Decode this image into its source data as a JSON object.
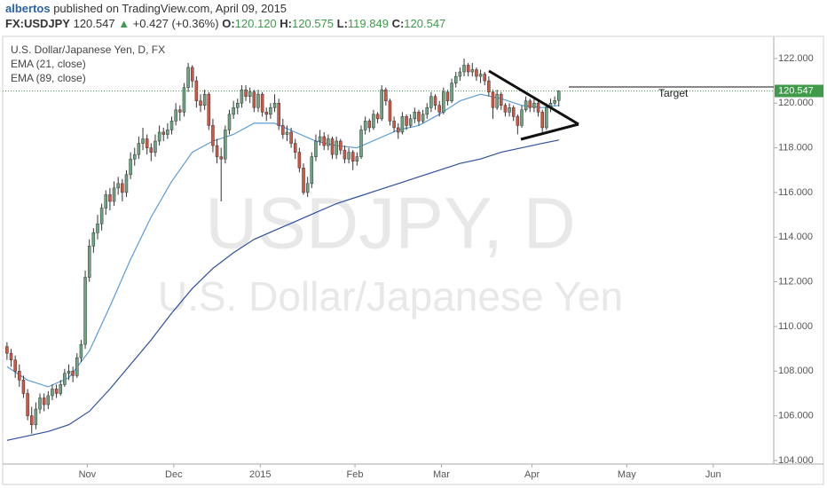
{
  "header": {
    "author": "albertos",
    "published": "published on TradingView.com, April 09, 2015",
    "symbol": "FX:USDJPY",
    "last": "120.547",
    "arrow": "▲",
    "change": "+0.427 (+0.36%)",
    "ohlc": [
      {
        "label": "O:",
        "value": "120.120"
      },
      {
        "label": "H:",
        "value": "120.575"
      },
      {
        "label": "L:",
        "value": "119.849"
      },
      {
        "label": "C:",
        "value": "120.547"
      }
    ]
  },
  "chart_data": {
    "type": "candlestick",
    "title": "U.S. Dollar/Japanese Yen, D, FX",
    "watermark": "USDJPY, D",
    "watermark_subtitle": "U.S. Dollar/Japanese Yen",
    "annotation": "Target",
    "up_color": "#6ba583",
    "down_color": "#d75442",
    "wick_color": "#333333",
    "xlim": [
      -1.7,
      186.2
    ],
    "ylim": [
      103.84,
      122.99
    ],
    "xticks": [
      {
        "value": 19.5,
        "label": "Nov"
      },
      {
        "value": 40.5,
        "label": "Dec"
      },
      {
        "value": 61.5,
        "label": "2015"
      },
      {
        "value": 84.5,
        "label": "Feb"
      },
      {
        "value": 105.5,
        "label": "Mar"
      },
      {
        "value": 127.5,
        "label": "Apr"
      },
      {
        "value": 150.5,
        "label": "May"
      },
      {
        "value": 171.5,
        "label": "Jun"
      }
    ],
    "yticks": [
      {
        "value": 104,
        "label": "104.000"
      },
      {
        "value": 106,
        "label": "106.000"
      },
      {
        "value": 108,
        "label": "108.000"
      },
      {
        "value": 110,
        "label": "110.000"
      },
      {
        "value": 112,
        "label": "112.000"
      },
      {
        "value": 114,
        "label": "114.000"
      },
      {
        "value": 116,
        "label": "116.000"
      },
      {
        "value": 118,
        "label": "118.000"
      },
      {
        "value": 120,
        "label": "120.000"
      },
      {
        "value": 122,
        "label": "122.000"
      }
    ],
    "grid": false,
    "last_price": {
      "value": 120.547,
      "label": "120.547"
    },
    "last_price_color": "#3f9a4a",
    "candles": [
      [
        109.1,
        109.3,
        108.5,
        108.8
      ],
      [
        108.8,
        109.0,
        108.2,
        108.5
      ],
      [
        108.5,
        108.7,
        107.7,
        108.0
      ],
      [
        108.0,
        108.3,
        107.3,
        107.6
      ],
      [
        107.6,
        107.8,
        106.8,
        107.0
      ],
      [
        107.0,
        107.2,
        105.8,
        106.0
      ],
      [
        106.0,
        106.4,
        105.2,
        105.6
      ],
      [
        105.6,
        106.6,
        105.4,
        106.3
      ],
      [
        106.3,
        107.0,
        106.1,
        106.8
      ],
      [
        106.8,
        107.0,
        106.2,
        106.5
      ],
      [
        106.5,
        107.1,
        106.3,
        106.9
      ],
      [
        106.9,
        107.4,
        106.7,
        107.2
      ],
      [
        107.2,
        107.4,
        106.8,
        107.0
      ],
      [
        107.0,
        107.6,
        106.9,
        107.4
      ],
      [
        107.4,
        108.1,
        107.3,
        107.9
      ],
      [
        107.9,
        108.3,
        107.6,
        108.0
      ],
      [
        108.0,
        108.2,
        107.5,
        107.8
      ],
      [
        107.8,
        108.8,
        107.7,
        108.6
      ],
      [
        108.6,
        109.4,
        108.4,
        109.2
      ],
      [
        109.2,
        112.5,
        109.0,
        112.2
      ],
      [
        112.2,
        113.9,
        112.0,
        113.6
      ],
      [
        113.6,
        114.4,
        113.3,
        114.2
      ],
      [
        114.2,
        115.0,
        113.9,
        114.6
      ],
      [
        114.6,
        115.5,
        114.3,
        115.3
      ],
      [
        115.3,
        116.1,
        115.0,
        115.9
      ],
      [
        115.9,
        116.2,
        115.2,
        115.6
      ],
      [
        115.6,
        116.5,
        115.4,
        116.2
      ],
      [
        116.2,
        116.7,
        115.9,
        116.4
      ],
      [
        116.4,
        116.6,
        115.6,
        116.0
      ],
      [
        116.0,
        117.0,
        115.8,
        116.8
      ],
      [
        116.8,
        117.8,
        116.6,
        117.5
      ],
      [
        117.5,
        118.0,
        117.2,
        117.7
      ],
      [
        117.7,
        118.5,
        117.5,
        118.2
      ],
      [
        118.2,
        118.9,
        117.9,
        118.4
      ],
      [
        118.4,
        118.6,
        117.7,
        118.0
      ],
      [
        118.0,
        118.2,
        117.4,
        117.8
      ],
      [
        117.8,
        118.6,
        117.6,
        118.3
      ],
      [
        118.3,
        119.0,
        118.1,
        118.7
      ],
      [
        118.7,
        118.9,
        118.3,
        118.6
      ],
      [
        118.6,
        119.1,
        118.4,
        118.8
      ],
      [
        118.8,
        119.4,
        118.6,
        119.2
      ],
      [
        119.2,
        120.0,
        119.0,
        119.7
      ],
      [
        119.7,
        119.9,
        119.2,
        119.6
      ],
      [
        119.6,
        120.9,
        119.4,
        120.7
      ],
      [
        120.7,
        121.8,
        120.5,
        121.6
      ],
      [
        121.6,
        121.7,
        120.7,
        121.0
      ],
      [
        121.0,
        121.2,
        119.8,
        120.1
      ],
      [
        120.1,
        120.4,
        119.6,
        119.9
      ],
      [
        119.9,
        120.6,
        119.7,
        120.4
      ],
      [
        120.4,
        120.5,
        118.8,
        119.0
      ],
      [
        119.0,
        119.3,
        117.8,
        118.1
      ],
      [
        118.1,
        118.4,
        117.3,
        117.6
      ],
      [
        117.6,
        118.0,
        115.6,
        117.5
      ],
      [
        117.5,
        119.0,
        117.3,
        118.8
      ],
      [
        118.8,
        119.7,
        118.6,
        119.5
      ],
      [
        119.5,
        120.1,
        119.3,
        119.8
      ],
      [
        119.8,
        120.2,
        119.5,
        120.0
      ],
      [
        120.0,
        120.8,
        119.8,
        120.6
      ],
      [
        120.6,
        120.8,
        120.1,
        120.3
      ],
      [
        120.3,
        120.7,
        120.0,
        120.5
      ],
      [
        120.5,
        120.6,
        119.6,
        119.8
      ],
      [
        119.8,
        120.6,
        119.6,
        120.4
      ],
      [
        120.4,
        120.5,
        119.4,
        119.6
      ],
      [
        119.6,
        119.8,
        119.2,
        119.5
      ],
      [
        119.5,
        120.0,
        119.3,
        119.8
      ],
      [
        119.8,
        120.4,
        119.6,
        120.0
      ],
      [
        120.0,
        120.2,
        118.8,
        119.0
      ],
      [
        119.0,
        119.3,
        118.4,
        118.6
      ],
      [
        118.6,
        119.0,
        118.3,
        118.7
      ],
      [
        118.7,
        118.9,
        118.0,
        118.2
      ],
      [
        118.2,
        118.4,
        117.5,
        117.8
      ],
      [
        117.8,
        118.0,
        116.9,
        117.1
      ],
      [
        117.1,
        117.3,
        115.9,
        116.0
      ],
      [
        116.0,
        116.7,
        115.8,
        116.4
      ],
      [
        116.4,
        117.8,
        116.2,
        117.6
      ],
      [
        117.6,
        118.6,
        117.4,
        118.3
      ],
      [
        118.3,
        118.8,
        118.1,
        118.5
      ],
      [
        118.5,
        118.7,
        117.9,
        118.1
      ],
      [
        118.1,
        118.6,
        117.9,
        118.4
      ],
      [
        118.4,
        118.5,
        117.5,
        117.7
      ],
      [
        117.7,
        118.5,
        117.5,
        118.3
      ],
      [
        118.3,
        118.4,
        117.7,
        117.9
      ],
      [
        117.9,
        118.1,
        117.3,
        117.5
      ],
      [
        117.5,
        118.0,
        117.3,
        117.8
      ],
      [
        117.8,
        117.9,
        117.0,
        117.4
      ],
      [
        117.4,
        117.8,
        117.2,
        117.6
      ],
      [
        117.6,
        119.0,
        117.5,
        118.8
      ],
      [
        118.8,
        119.4,
        118.6,
        119.2
      ],
      [
        119.2,
        119.3,
        118.7,
        118.9
      ],
      [
        118.9,
        119.7,
        118.8,
        119.5
      ],
      [
        119.5,
        119.6,
        119.1,
        119.3
      ],
      [
        119.3,
        120.8,
        119.2,
        120.6
      ],
      [
        120.6,
        120.7,
        119.9,
        120.1
      ],
      [
        120.1,
        120.2,
        119.0,
        119.2
      ],
      [
        119.2,
        119.4,
        118.7,
        118.9
      ],
      [
        118.9,
        119.1,
        118.4,
        118.7
      ],
      [
        118.7,
        119.6,
        118.6,
        119.4
      ],
      [
        119.4,
        119.5,
        118.8,
        119.0
      ],
      [
        119.0,
        119.5,
        118.9,
        119.3
      ],
      [
        119.3,
        119.8,
        119.1,
        119.6
      ],
      [
        119.6,
        119.7,
        119.0,
        119.2
      ],
      [
        119.2,
        119.7,
        119.1,
        119.5
      ],
      [
        119.5,
        120.0,
        119.3,
        119.8
      ],
      [
        119.8,
        120.5,
        119.6,
        120.3
      ],
      [
        120.3,
        120.4,
        119.7,
        119.9
      ],
      [
        119.9,
        120.1,
        119.4,
        119.6
      ],
      [
        119.6,
        120.7,
        119.5,
        120.5
      ],
      [
        120.5,
        120.6,
        119.9,
        120.1
      ],
      [
        120.1,
        121.1,
        120.0,
        120.9
      ],
      [
        120.9,
        121.4,
        120.7,
        121.2
      ],
      [
        121.2,
        121.6,
        121.0,
        121.4
      ],
      [
        121.4,
        122.0,
        121.2,
        121.7
      ],
      [
        121.7,
        121.8,
        121.2,
        121.4
      ],
      [
        121.4,
        121.8,
        121.2,
        121.5
      ],
      [
        121.5,
        121.6,
        121.0,
        121.2
      ],
      [
        121.2,
        121.5,
        120.9,
        121.3
      ],
      [
        121.3,
        121.4,
        120.8,
        121.0
      ],
      [
        121.0,
        121.2,
        120.3,
        120.5
      ],
      [
        120.5,
        120.6,
        119.3,
        119.8
      ],
      [
        119.8,
        120.6,
        119.7,
        120.4
      ],
      [
        120.4,
        120.5,
        119.7,
        119.9
      ],
      [
        119.9,
        120.0,
        119.4,
        119.6
      ],
      [
        119.6,
        120.0,
        119.4,
        119.8
      ],
      [
        119.8,
        119.9,
        119.2,
        119.4
      ],
      [
        119.4,
        119.5,
        118.6,
        119.0
      ],
      [
        119.0,
        119.9,
        118.9,
        119.7
      ],
      [
        119.7,
        120.3,
        119.6,
        120.1
      ],
      [
        120.1,
        120.2,
        119.6,
        119.8
      ],
      [
        119.8,
        120.2,
        119.6,
        120.0
      ],
      [
        120.0,
        120.1,
        119.4,
        119.6
      ],
      [
        119.6,
        119.7,
        118.7,
        118.9
      ],
      [
        118.9,
        120.0,
        118.8,
        119.8
      ],
      [
        119.8,
        120.2,
        119.6,
        120.0
      ],
      [
        120.0,
        120.3,
        119.9,
        120.12
      ],
      [
        120.12,
        120.575,
        119.849,
        120.547
      ]
    ],
    "series": [
      {
        "name": "EMA (21, close)",
        "color": "#5b9bd5",
        "x": [
          0,
          5,
          10,
          15,
          20,
          25,
          30,
          35,
          40,
          45,
          50,
          55,
          60,
          65,
          70,
          75,
          80,
          85,
          90,
          95,
          100,
          105,
          110,
          115,
          120,
          125,
          130,
          134
        ],
        "values": [
          108.2,
          107.6,
          107.3,
          107.7,
          108.9,
          110.9,
          113.0,
          114.9,
          116.5,
          117.8,
          118.3,
          118.6,
          119.1,
          119.1,
          118.7,
          118.3,
          118.1,
          118.0,
          118.4,
          118.8,
          119.0,
          119.5,
          120.1,
          120.4,
          120.2,
          119.9,
          119.8,
          119.9
        ]
      },
      {
        "name": "EMA (89, close)",
        "color": "#2c4f9e",
        "x": [
          0,
          5,
          10,
          15,
          20,
          25,
          30,
          35,
          40,
          45,
          50,
          55,
          60,
          65,
          70,
          75,
          80,
          85,
          90,
          95,
          100,
          105,
          110,
          115,
          120,
          125,
          130,
          134
        ],
        "values": [
          104.9,
          105.1,
          105.3,
          105.6,
          106.2,
          107.2,
          108.3,
          109.4,
          110.6,
          111.7,
          112.6,
          113.3,
          113.9,
          114.3,
          114.7,
          115.1,
          115.5,
          115.8,
          116.1,
          116.4,
          116.7,
          117.0,
          117.3,
          117.5,
          117.8,
          118.0,
          118.2,
          118.35
        ]
      }
    ]
  }
}
